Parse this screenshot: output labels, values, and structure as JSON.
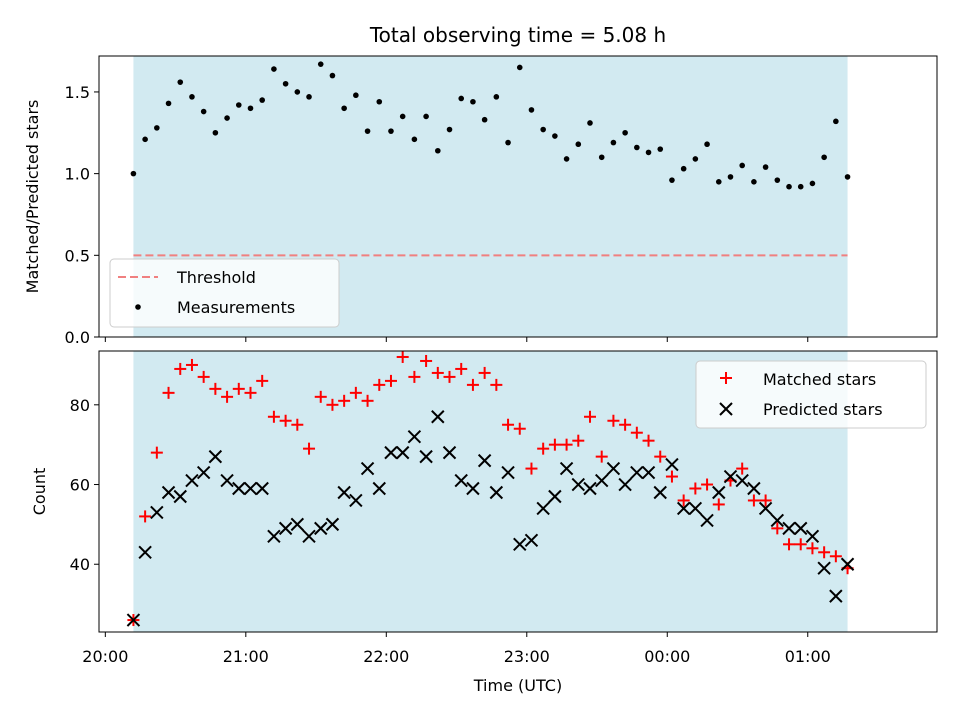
{
  "chart_data": [
    {
      "type": "scatter",
      "title": "Total observing time = 5.08 h",
      "xlabel": "",
      "ylabel": "Matched/Predicted stars",
      "ylim": [
        0,
        1.72
      ],
      "yticks": [
        0.0,
        0.5,
        1.0,
        1.5
      ],
      "ytick_labels": [
        "0.0",
        "0.5",
        "1.0",
        "1.5"
      ],
      "shaded_span": [
        "20:12",
        "01:17"
      ],
      "shade_color": "#add8e6",
      "threshold": {
        "name": "Threshold",
        "value": 0.5,
        "color": "#f08080",
        "style": "dashed"
      },
      "legend_position": "lower-left",
      "legend": [
        "Threshold",
        "Measurements"
      ],
      "series": [
        {
          "name": "Measurements",
          "marker": "dot",
          "color": "#000000",
          "x": [
            "20:12",
            "20:17",
            "20:22",
            "20:27",
            "20:32",
            "20:37",
            "20:42",
            "20:47",
            "20:52",
            "20:57",
            "21:02",
            "21:07",
            "21:12",
            "21:17",
            "21:22",
            "21:27",
            "21:32",
            "21:37",
            "21:42",
            "21:47",
            "21:52",
            "21:57",
            "22:02",
            "22:07",
            "22:12",
            "22:17",
            "22:22",
            "22:27",
            "22:32",
            "22:37",
            "22:42",
            "22:47",
            "22:52",
            "22:57",
            "23:02",
            "23:07",
            "23:12",
            "23:17",
            "23:22",
            "23:27",
            "23:32",
            "23:37",
            "23:42",
            "23:47",
            "23:52",
            "23:57",
            "00:02",
            "00:07",
            "00:12",
            "00:17",
            "00:22",
            "00:27",
            "00:32",
            "00:37",
            "00:42",
            "00:47",
            "00:52",
            "00:57",
            "01:02",
            "01:07",
            "01:12",
            "01:17"
          ],
          "y": [
            1.0,
            1.21,
            1.28,
            1.43,
            1.56,
            1.47,
            1.38,
            1.25,
            1.34,
            1.42,
            1.4,
            1.45,
            1.64,
            1.55,
            1.5,
            1.47,
            1.67,
            1.6,
            1.4,
            1.48,
            1.26,
            1.44,
            1.26,
            1.35,
            1.21,
            1.35,
            1.14,
            1.27,
            1.46,
            1.44,
            1.33,
            1.47,
            1.19,
            1.65,
            1.39,
            1.27,
            1.23,
            1.09,
            1.18,
            1.31,
            1.1,
            1.19,
            1.25,
            1.16,
            1.13,
            1.15,
            0.96,
            1.03,
            1.09,
            1.18,
            0.95,
            0.98,
            1.05,
            0.95,
            1.04,
            0.96,
            0.92,
            0.92,
            0.94,
            1.1,
            1.32,
            0.98
          ]
        }
      ]
    },
    {
      "type": "scatter",
      "title": "",
      "xlabel": "Time (UTC)",
      "ylabel": "Count",
      "ylim": [
        23,
        93.5
      ],
      "yticks": [
        40,
        60,
        80
      ],
      "ytick_labels": [
        "40",
        "60",
        "80"
      ],
      "xticks": [
        "20:00",
        "21:00",
        "22:00",
        "23:00",
        "00:00",
        "01:00"
      ],
      "xtick_labels": [
        "20:00",
        "21:00",
        "22:00",
        "23:00",
        "00:00",
        "01:00"
      ],
      "shaded_span": [
        "20:12",
        "01:17"
      ],
      "shade_color": "#add8e6",
      "legend_position": "upper-right",
      "legend": [
        "Matched stars",
        "Predicted stars"
      ],
      "x": [
        "20:12",
        "20:17",
        "20:22",
        "20:27",
        "20:32",
        "20:37",
        "20:42",
        "20:47",
        "20:52",
        "20:57",
        "21:02",
        "21:07",
        "21:12",
        "21:17",
        "21:22",
        "21:27",
        "21:32",
        "21:37",
        "21:42",
        "21:47",
        "21:52",
        "21:57",
        "22:02",
        "22:07",
        "22:12",
        "22:17",
        "22:22",
        "22:27",
        "22:32",
        "22:37",
        "22:42",
        "22:47",
        "22:52",
        "22:57",
        "23:02",
        "23:07",
        "23:12",
        "23:17",
        "23:22",
        "23:27",
        "23:32",
        "23:37",
        "23:42",
        "23:47",
        "23:52",
        "23:57",
        "00:02",
        "00:07",
        "00:12",
        "00:17",
        "00:22",
        "00:27",
        "00:32",
        "00:37",
        "00:42",
        "00:47",
        "00:52",
        "00:57",
        "01:02",
        "01:07",
        "01:12",
        "01:17"
      ],
      "series": [
        {
          "name": "Matched stars",
          "marker": "plus",
          "color": "#ff0000",
          "values": [
            26,
            52,
            68,
            83,
            89,
            90,
            87,
            84,
            82,
            84,
            83,
            86,
            77,
            76,
            75,
            69,
            82,
            80,
            81,
            83,
            81,
            85,
            86,
            92,
            87,
            91,
            88,
            87,
            89,
            85,
            88,
            85,
            75,
            74,
            64,
            69,
            70,
            70,
            71,
            77,
            67,
            76,
            75,
            73,
            71,
            67,
            62,
            56,
            59,
            60,
            55,
            61,
            64,
            56,
            56,
            49,
            45,
            45,
            44,
            43,
            42,
            39
          ]
        },
        {
          "name": "Predicted stars",
          "marker": "x",
          "color": "#000000",
          "values": [
            26,
            43,
            53,
            58,
            57,
            61,
            63,
            67,
            61,
            59,
            59,
            59,
            47,
            49,
            50,
            47,
            49,
            50,
            58,
            56,
            64,
            59,
            68,
            68,
            72,
            67,
            77,
            68,
            61,
            59,
            66,
            58,
            63,
            45,
            46,
            54,
            57,
            64,
            60,
            59,
            61,
            64,
            60,
            63,
            63,
            58,
            65,
            54,
            54,
            51,
            58,
            62,
            61,
            59,
            54,
            51,
            49,
            49,
            47,
            39,
            32,
            40
          ]
        }
      ]
    }
  ]
}
